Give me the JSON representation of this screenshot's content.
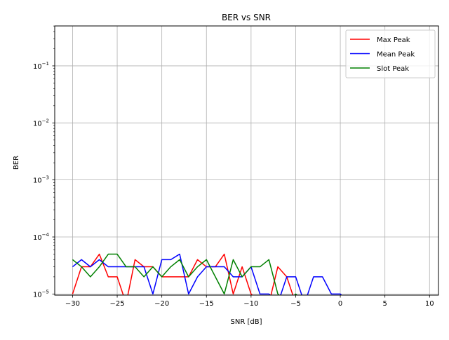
{
  "chart_data": {
    "type": "line",
    "title": "BER vs SNR",
    "xlabel": "SNR [dB]",
    "ylabel": "BER",
    "xlim": [
      -32,
      11
    ],
    "ylim_log10": [
      -5.02,
      -0.3
    ],
    "x_ticks": [
      {
        "value": -30,
        "label": "−30"
      },
      {
        "value": -25,
        "label": "−25"
      },
      {
        "value": -20,
        "label": "−20"
      },
      {
        "value": -15,
        "label": "−15"
      },
      {
        "value": -10,
        "label": "−10"
      },
      {
        "value": -5,
        "label": "−5"
      },
      {
        "value": 0,
        "label": "0"
      },
      {
        "value": 5,
        "label": "5"
      },
      {
        "value": 10,
        "label": "10"
      }
    ],
    "y_ticks": [
      {
        "exp": -1,
        "base": "10",
        "power": "−1"
      },
      {
        "exp": -2,
        "base": "10",
        "power": "−2"
      },
      {
        "exp": -3,
        "base": "10",
        "power": "−3"
      },
      {
        "exp": -4,
        "base": "10",
        "power": "−4"
      },
      {
        "exp": -5,
        "base": "10",
        "power": "−5"
      }
    ],
    "grid": true,
    "legend_position": "top-right",
    "x": [
      -30,
      -29,
      -28,
      -27,
      -26,
      -25,
      -24,
      -23,
      -22,
      -21,
      -20,
      -19,
      -18,
      -17,
      -16,
      -15,
      -14,
      -13,
      -12,
      -11,
      -10,
      -9,
      -8,
      -7,
      -6,
      -5,
      -4,
      -3,
      -2,
      -1,
      0,
      1,
      2,
      3,
      4,
      5,
      6,
      7,
      8,
      9,
      10
    ],
    "series": [
      {
        "name": "Max Peak",
        "color": "#ff0000",
        "values": [
          1e-05,
          3e-05,
          3e-05,
          5e-05,
          2e-05,
          2e-05,
          0,
          4e-05,
          3e-05,
          3e-05,
          2e-05,
          2e-05,
          2e-05,
          2e-05,
          4e-05,
          3e-05,
          3e-05,
          5e-05,
          1e-05,
          3e-05,
          1e-05,
          0,
          0,
          3e-05,
          2e-05,
          0,
          0,
          0,
          0,
          0,
          0,
          0,
          0,
          0,
          0,
          0,
          0,
          0,
          0,
          0,
          0
        ]
      },
      {
        "name": "Mean Peak",
        "color": "#0000ff",
        "values": [
          3e-05,
          4e-05,
          3e-05,
          4e-05,
          3e-05,
          3e-05,
          3e-05,
          3e-05,
          3e-05,
          1e-05,
          4e-05,
          4e-05,
          5e-05,
          1e-05,
          2e-05,
          3e-05,
          3e-05,
          3e-05,
          2e-05,
          2e-05,
          3e-05,
          1e-05,
          1e-05,
          0,
          2e-05,
          2e-05,
          0,
          2e-05,
          2e-05,
          1e-05,
          1e-05,
          0,
          0,
          0,
          0,
          0,
          0,
          0,
          0,
          0,
          0
        ]
      },
      {
        "name": "Slot Peak",
        "color": "#008000",
        "values": [
          4e-05,
          3e-05,
          2e-05,
          3e-05,
          5e-05,
          5e-05,
          3e-05,
          3e-05,
          2e-05,
          3e-05,
          2e-05,
          3e-05,
          4e-05,
          2e-05,
          3e-05,
          4e-05,
          2e-05,
          1e-05,
          4e-05,
          2e-05,
          3e-05,
          3e-05,
          4e-05,
          1e-05,
          0,
          1e-05,
          0,
          0,
          0,
          0,
          0,
          0,
          0,
          0,
          0,
          0,
          0,
          0,
          0,
          0,
          0
        ]
      }
    ]
  }
}
